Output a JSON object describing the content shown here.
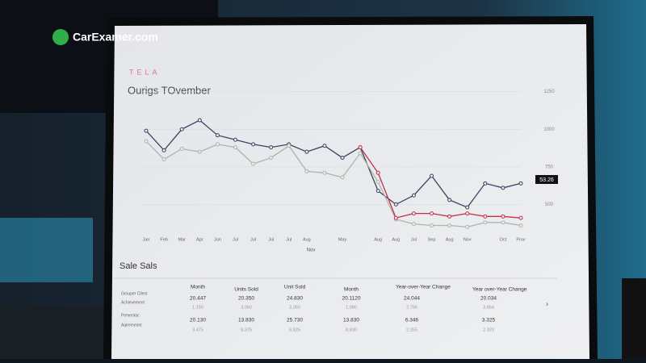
{
  "logo": "CarExamer.com",
  "brand": "TELA",
  "chart_data": {
    "type": "line",
    "title": "Ourigs TOvember",
    "xlabel": "Nov",
    "annotation": "53.26",
    "categories": [
      "Jan",
      "Feb",
      "Mar",
      "Apr",
      "Jun",
      "Jul",
      "Jul",
      "Jul",
      "Jul",
      "Aug",
      null,
      "May",
      null,
      "Aug",
      "Aug",
      "Jul",
      "Sep",
      "Aug",
      "Nov",
      null,
      "Oct",
      "Prov"
    ],
    "series": [
      {
        "color": "#3d4160",
        "values": [
          990,
          860,
          1000,
          1060,
          960,
          930,
          900,
          880,
          900,
          850,
          890,
          810,
          880,
          590,
          500,
          560,
          690,
          530,
          480,
          640,
          610,
          640
        ]
      },
      {
        "color": "#a8b8a6",
        "values": [
          920,
          800,
          870,
          850,
          900,
          880,
          770,
          810,
          890,
          720,
          710,
          680,
          840,
          650,
          400,
          370,
          360,
          360,
          350,
          380,
          380,
          360
        ]
      },
      {
        "color": "#c2304c",
        "values": [
          null,
          null,
          null,
          null,
          null,
          null,
          null,
          null,
          null,
          null,
          null,
          null,
          880,
          710,
          410,
          440,
          440,
          420,
          440,
          420,
          420,
          410
        ]
      }
    ],
    "ylim": [
      250,
      1350
    ],
    "yticks": [
      500,
      750,
      1000,
      1250
    ],
    "grid": true
  },
  "table": {
    "title": "Sale Sals",
    "headers": [
      "Month",
      "Units Sold",
      "Unit Sold",
      "Month",
      "Year-over-Year Change",
      "Year over-Year Change"
    ],
    "row_labels": [
      "Grouper Cilest",
      "Achievement",
      "Pementac",
      "Aqiremeont"
    ],
    "rows": [
      [
        "20.447",
        "20.350",
        "24.830",
        "20.1120",
        "24.044",
        "20.034"
      ],
      [
        "1.150",
        "3,060",
        "3.365",
        "1.080",
        "2.756",
        "3.864"
      ],
      [
        "20.130",
        "13.830",
        "25.730",
        "13.830",
        "6.346",
        "3.325"
      ],
      [
        "3.475",
        "8.375",
        "6.825",
        "8,830",
        "2.255",
        "2.320"
      ]
    ]
  }
}
